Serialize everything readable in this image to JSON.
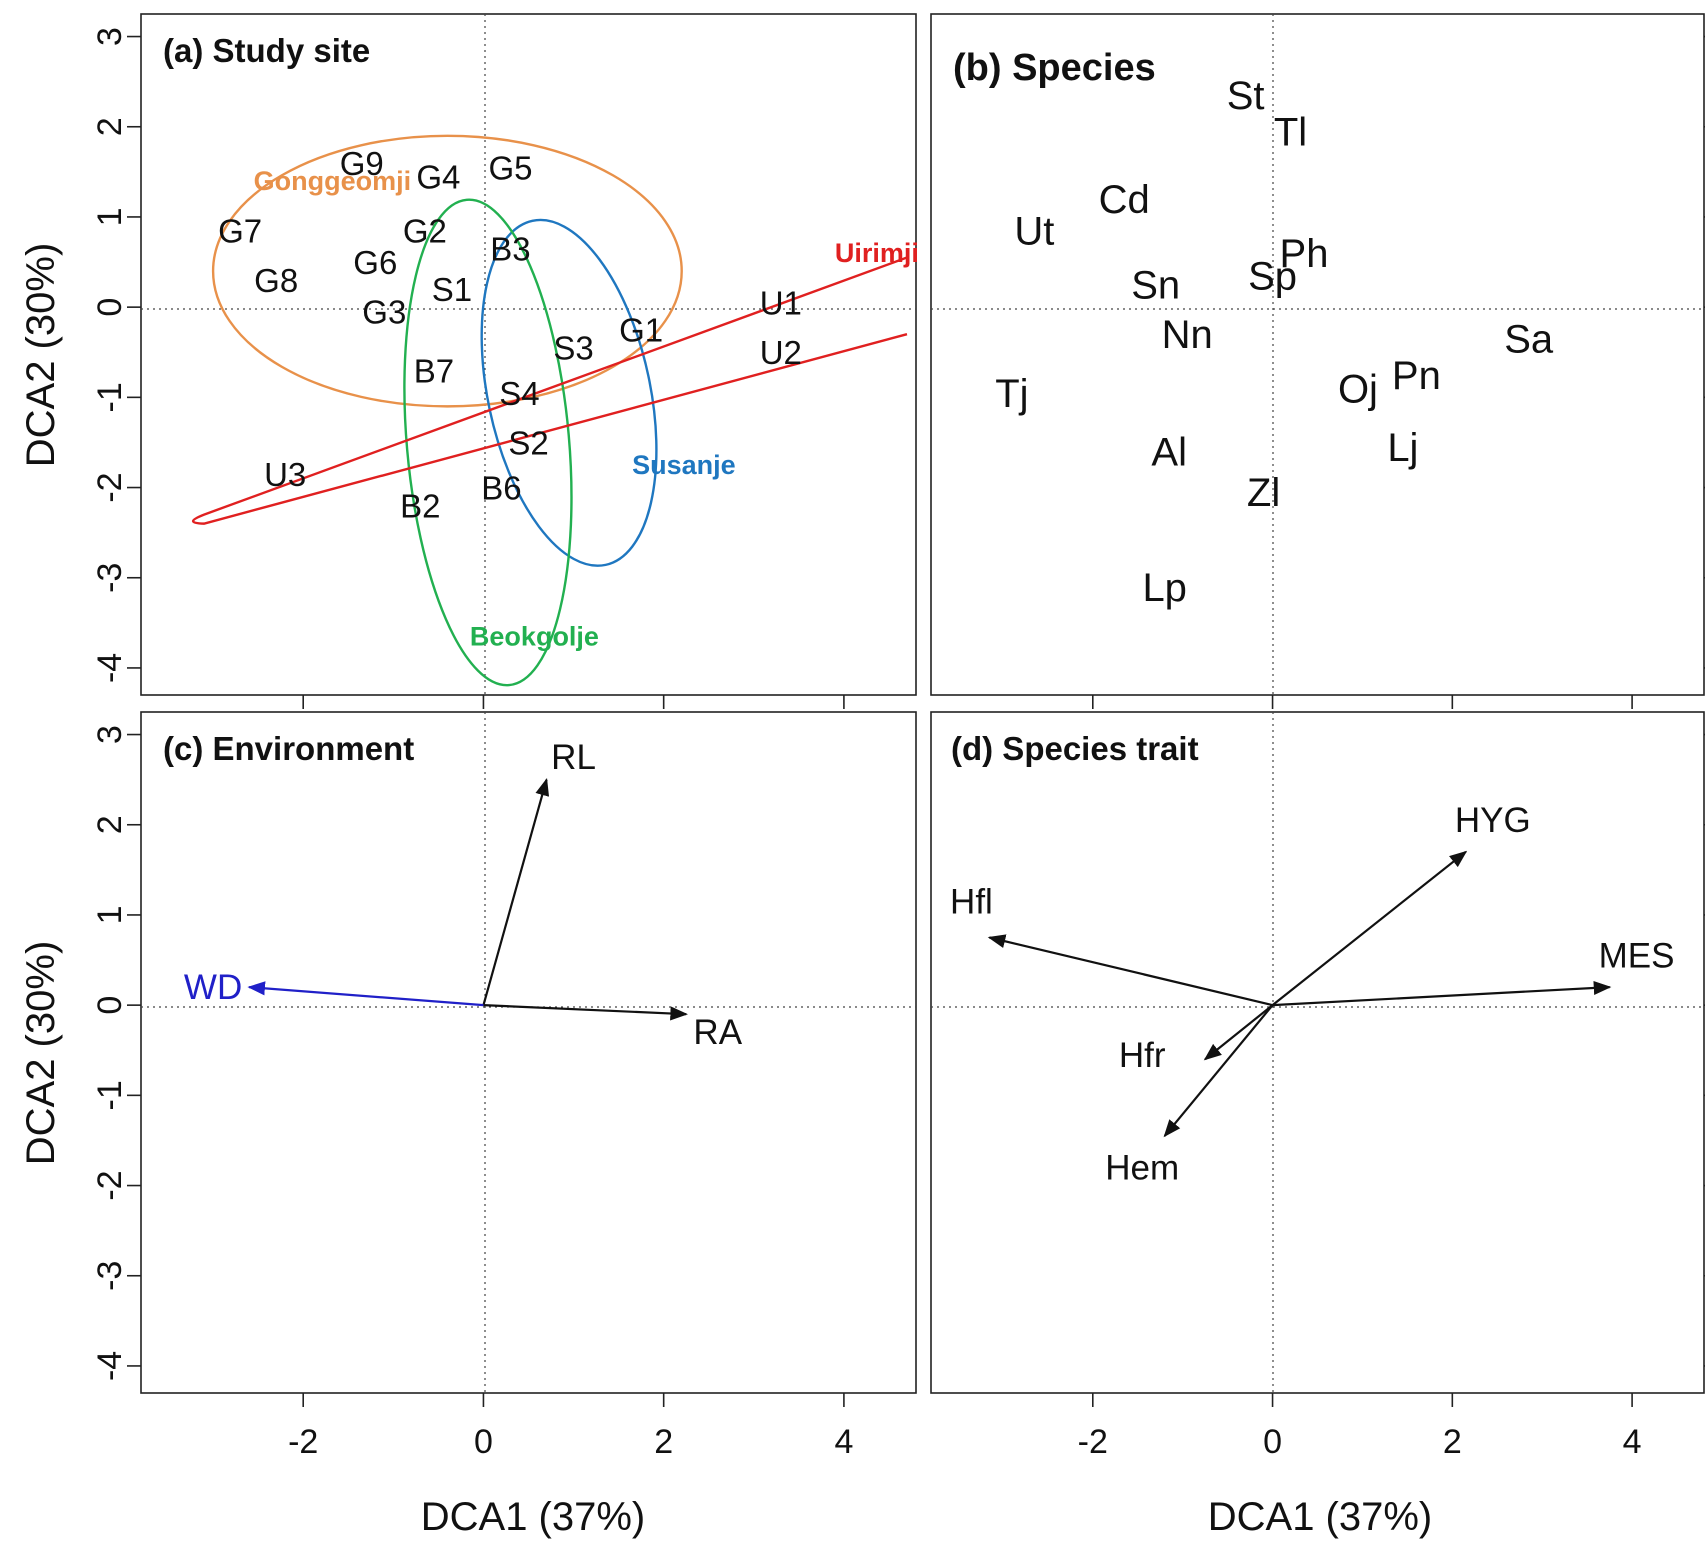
{
  "chart_data": [
    {
      "panel": "a",
      "type": "scatter",
      "title": "(a) Study site",
      "xlabel": "DCA1 (37%)",
      "ylabel": "DCA2 (30%)",
      "xlim": [
        -3.8,
        4.8
      ],
      "ylim": [
        -4.3,
        3.25
      ],
      "xticks": [
        -2,
        0,
        2,
        4
      ],
      "xtick_labels": [
        "-2",
        "0",
        "2",
        "4"
      ],
      "yticks": [
        -4,
        -3,
        -2,
        -1,
        0,
        1,
        2,
        3
      ],
      "ytick_labels": [
        "-4",
        "-3",
        "-2",
        "-1",
        "0",
        "1",
        "2",
        "3"
      ],
      "points": [
        {
          "label": "G9",
          "x": -1.35,
          "y": 1.6
        },
        {
          "label": "G4",
          "x": -0.5,
          "y": 1.45
        },
        {
          "label": "G5",
          "x": 0.3,
          "y": 1.55
        },
        {
          "label": "G7",
          "x": -2.7,
          "y": 0.85
        },
        {
          "label": "G2",
          "x": -0.65,
          "y": 0.85
        },
        {
          "label": "G6",
          "x": -1.2,
          "y": 0.5
        },
        {
          "label": "G8",
          "x": -2.3,
          "y": 0.3
        },
        {
          "label": "G3",
          "x": -1.1,
          "y": -0.05
        },
        {
          "label": "G1",
          "x": 1.75,
          "y": -0.25
        },
        {
          "label": "S1",
          "x": -0.35,
          "y": 0.2
        },
        {
          "label": "S3",
          "x": 1.0,
          "y": -0.45
        },
        {
          "label": "S4",
          "x": 0.4,
          "y": -0.95
        },
        {
          "label": "S2",
          "x": 0.5,
          "y": -1.5
        },
        {
          "label": "B3",
          "x": 0.3,
          "y": 0.65
        },
        {
          "label": "B7",
          "x": -0.55,
          "y": -0.7
        },
        {
          "label": "B6",
          "x": 0.2,
          "y": -2.0
        },
        {
          "label": "B2",
          "x": -0.7,
          "y": -2.2
        },
        {
          "label": "U1",
          "x": 3.3,
          "y": 0.05
        },
        {
          "label": "U2",
          "x": 3.3,
          "y": -0.5
        },
        {
          "label": "U3",
          "x": -2.2,
          "y": -1.85
        }
      ],
      "groups": [
        {
          "name": "Gonggeomji",
          "color": "#E8914A",
          "ellipse": {
            "cx": -0.4,
            "cy": 0.4,
            "rx": 2.6,
            "ry": 1.5,
            "angle_deg": 0
          },
          "label_x": -2.55,
          "label_y": 1.3
        },
        {
          "name": "Susanje",
          "color": "#1F77C0",
          "ellipse": {
            "cx": 0.95,
            "cy": -0.95,
            "rx": 0.9,
            "ry": 1.95,
            "angle_deg": -12
          },
          "label_x": 1.65,
          "label_y": -1.85
        },
        {
          "name": "Beokgolje",
          "color": "#22B050",
          "ellipse": {
            "cx": 0.05,
            "cy": -1.5,
            "rx": 0.9,
            "ry": 2.7,
            "angle_deg": -5
          },
          "label_x": -0.15,
          "label_y": -3.75
        },
        {
          "name": "Uirimji",
          "color": "#E02020",
          "band": {
            "upper": [
              [
                4.7,
                0.55
              ],
              [
                -3.1,
                -2.3
              ]
            ],
            "lower": [
              [
                4.7,
                -0.3
              ],
              [
                -3.1,
                -2.4
              ]
            ]
          },
          "label_x": 3.9,
          "label_y": 0.5
        }
      ]
    },
    {
      "panel": "b",
      "type": "scatter",
      "title": "(b) Species",
      "xlim": [
        -3.8,
        4.8
      ],
      "ylim": [
        -4.3,
        3.25
      ],
      "points": [
        {
          "label": "St",
          "x": -0.3,
          "y": 2.35
        },
        {
          "label": "Tl",
          "x": 0.2,
          "y": 1.95
        },
        {
          "label": "Cd",
          "x": -1.65,
          "y": 1.2
        },
        {
          "label": "Ut",
          "x": -2.65,
          "y": 0.85
        },
        {
          "label": "Ph",
          "x": 0.35,
          "y": 0.6
        },
        {
          "label": "Sp",
          "x": 0.0,
          "y": 0.35
        },
        {
          "label": "Sn",
          "x": -1.3,
          "y": 0.25
        },
        {
          "label": "Nn",
          "x": -0.95,
          "y": -0.3
        },
        {
          "label": "Sa",
          "x": 2.85,
          "y": -0.35
        },
        {
          "label": "Pn",
          "x": 1.6,
          "y": -0.75
        },
        {
          "label": "Oj",
          "x": 0.95,
          "y": -0.9
        },
        {
          "label": "Tj",
          "x": -2.9,
          "y": -0.95
        },
        {
          "label": "Lj",
          "x": 1.45,
          "y": -1.55
        },
        {
          "label": "Al",
          "x": -1.15,
          "y": -1.6
        },
        {
          "label": "Zl",
          "x": -0.1,
          "y": -2.05
        },
        {
          "label": "Lp",
          "x": -1.2,
          "y": -3.1
        }
      ]
    },
    {
      "panel": "c",
      "type": "scatter",
      "title": "(c) Environment",
      "xlabel": "DCA1 (37%)",
      "ylabel": "DCA2 (30%)",
      "xlim": [
        -3.8,
        4.8
      ],
      "ylim": [
        -4.3,
        3.25
      ],
      "vectors": [
        {
          "label": "RL",
          "x": 0.7,
          "y": 2.5,
          "color": "#111111",
          "label_x": 1.0,
          "label_y": 2.75
        },
        {
          "label": "WD",
          "x": -2.6,
          "y": 0.2,
          "color": "#2020C8",
          "label_x": -3.0,
          "label_y": 0.2
        },
        {
          "label": "RA",
          "x": 2.25,
          "y": -0.1,
          "color": "#111111",
          "label_x": 2.6,
          "label_y": -0.3
        }
      ]
    },
    {
      "panel": "d",
      "type": "scatter",
      "title": "(d) Species trait",
      "xlabel": "DCA1 (37%)",
      "xlim": [
        -3.8,
        4.8
      ],
      "ylim": [
        -4.3,
        3.25
      ],
      "vectors": [
        {
          "label": "HYG",
          "x": 2.15,
          "y": 1.7,
          "color": "#111111",
          "label_x": 2.45,
          "label_y": 2.05
        },
        {
          "label": "Hfl",
          "x": -3.15,
          "y": 0.75,
          "color": "#111111",
          "label_x": -3.35,
          "label_y": 1.15
        },
        {
          "label": "MES",
          "x": 3.75,
          "y": 0.2,
          "color": "#111111",
          "label_x": 4.05,
          "label_y": 0.55
        },
        {
          "label": "Hfr",
          "x": -0.75,
          "y": -0.6,
          "color": "#111111",
          "label_x": -1.45,
          "label_y": -0.55
        },
        {
          "label": "Hem",
          "x": -1.2,
          "y": -1.45,
          "color": "#111111",
          "label_x": -1.45,
          "label_y": -1.8
        }
      ]
    }
  ]
}
